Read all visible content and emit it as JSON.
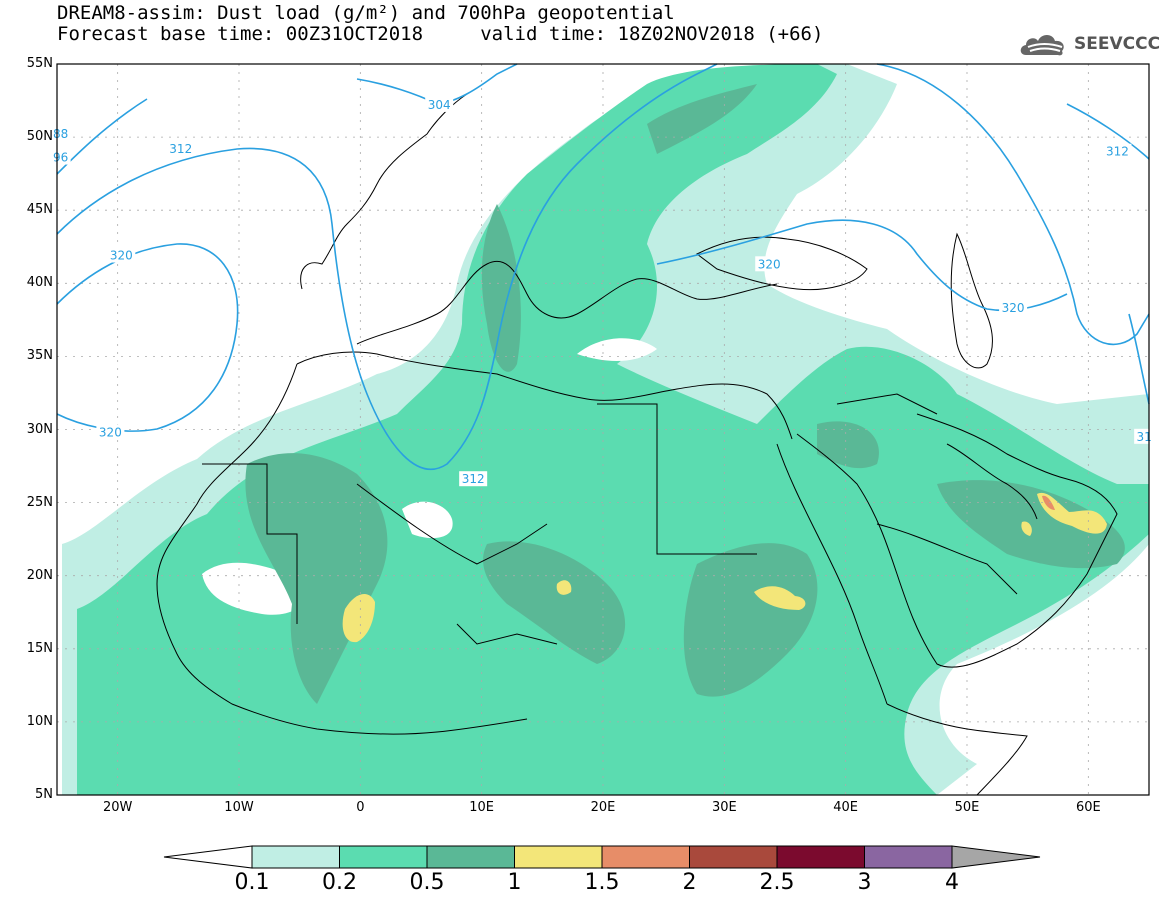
{
  "header": {
    "title_line1": "DREAM8-assim: Dust load (g/m²) and 700hPa geopotential",
    "title_line2": "Forecast base time: 00Z31OCT2018     valid time: 18Z02NOV2018 (+66)",
    "logo_text": "SEEVCCC",
    "logo_icon": "cloud-logo-icon"
  },
  "map": {
    "lat_range": [
      5,
      55
    ],
    "lon_range": [
      -25,
      65
    ],
    "lat_ticks": [
      {
        "value": 55,
        "label": "55N"
      },
      {
        "value": 50,
        "label": "50N"
      },
      {
        "value": 45,
        "label": "45N"
      },
      {
        "value": 40,
        "label": "40N"
      },
      {
        "value": 35,
        "label": "35N"
      },
      {
        "value": 30,
        "label": "30N"
      },
      {
        "value": 25,
        "label": "25N"
      },
      {
        "value": 20,
        "label": "20N"
      },
      {
        "value": 15,
        "label": "15N"
      },
      {
        "value": 10,
        "label": "10N"
      },
      {
        "value": 5,
        "label": "5N"
      }
    ],
    "lon_ticks": [
      {
        "value": -20,
        "label": "20W"
      },
      {
        "value": -10,
        "label": "10W"
      },
      {
        "value": 0,
        "label": "0"
      },
      {
        "value": 10,
        "label": "10E"
      },
      {
        "value": 20,
        "label": "20E"
      },
      {
        "value": 30,
        "label": "30E"
      },
      {
        "value": 40,
        "label": "40E"
      },
      {
        "value": 50,
        "label": "50E"
      },
      {
        "value": 60,
        "label": "60E"
      }
    ],
    "contour_labels": [
      {
        "text": "304",
        "lon": 6.5,
        "lat": 52.2
      },
      {
        "text": "312",
        "lon": -14.8,
        "lat": 49.2
      },
      {
        "text": "312",
        "lon": 9.3,
        "lat": 26.6
      },
      {
        "text": "312",
        "lon": 62.4,
        "lat": 49.0
      },
      {
        "text": "320",
        "lon": -19.7,
        "lat": 41.9
      },
      {
        "text": "320",
        "lon": -20.6,
        "lat": 29.8
      },
      {
        "text": "320",
        "lon": 33.7,
        "lat": 41.3
      },
      {
        "text": "320",
        "lon": 53.8,
        "lat": 38.3
      },
      {
        "text": "88",
        "lon": -24.7,
        "lat": 50.2
      },
      {
        "text": "96",
        "lon": -24.7,
        "lat": 48.6
      },
      {
        "text": "31",
        "lon": 64.6,
        "lat": 29.5
      }
    ],
    "colors": {
      "contour": "#2aa0e0",
      "coast": "#000000",
      "grid": "#aaaaaa"
    }
  },
  "legend": {
    "levels": [
      "0.1",
      "0.2",
      "0.5",
      "1",
      "1.5",
      "2",
      "2.5",
      "3",
      "4"
    ],
    "colors": [
      "#ffffff",
      "#c0eee4",
      "#5bdcb0",
      "#5ab896",
      "#f3e679",
      "#e78d68",
      "#a9493c",
      "#7b0a2e",
      "#8a66a1",
      "#a6a6a6"
    ]
  }
}
